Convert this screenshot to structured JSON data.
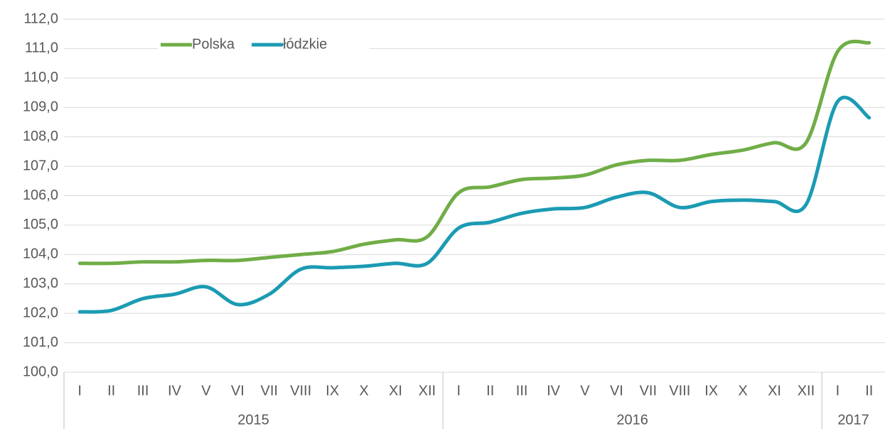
{
  "chart_data": {
    "type": "line",
    "categories": [
      "I",
      "II",
      "III",
      "IV",
      "V",
      "VI",
      "VII",
      "VIII",
      "IX",
      "X",
      "XI",
      "XII",
      "I",
      "II",
      "III",
      "IV",
      "V",
      "VI",
      "VII",
      "VIII",
      "IX",
      "X",
      "XI",
      "XII",
      "I",
      "II"
    ],
    "years": [
      "2015",
      "2015",
      "2015",
      "2015",
      "2015",
      "2015",
      "2015",
      "2015",
      "2015",
      "2015",
      "2015",
      "2015",
      "2016",
      "2016",
      "2016",
      "2016",
      "2016",
      "2016",
      "2016",
      "2016",
      "2016",
      "2016",
      "2016",
      "2016",
      "2017",
      "2017"
    ],
    "series": [
      {
        "name": "Polska",
        "color": "#70ad47",
        "values": [
          103.7,
          103.7,
          103.75,
          103.75,
          103.8,
          103.8,
          103.9,
          104.0,
          104.1,
          104.35,
          104.5,
          104.6,
          106.1,
          106.3,
          106.55,
          106.6,
          106.7,
          107.05,
          107.2,
          107.2,
          107.4,
          107.55,
          107.8,
          107.8,
          110.9,
          111.2
        ]
      },
      {
        "name": "łódzkie",
        "color": "#1b9bb3",
        "values": [
          102.05,
          102.1,
          102.5,
          102.65,
          102.9,
          102.3,
          102.65,
          103.5,
          103.55,
          103.6,
          103.7,
          103.7,
          104.9,
          105.1,
          105.4,
          105.55,
          105.6,
          105.95,
          106.1,
          105.6,
          105.8,
          105.85,
          105.8,
          105.7,
          109.2,
          108.65
        ]
      }
    ],
    "ylim": [
      100,
      112
    ],
    "yticks": [
      {
        "value": 100,
        "label": "100,0"
      },
      {
        "value": 101,
        "label": "101,0"
      },
      {
        "value": 102,
        "label": "102,0"
      },
      {
        "value": 103,
        "label": "103,0"
      },
      {
        "value": 104,
        "label": "104,0"
      },
      {
        "value": 105,
        "label": "105,0"
      },
      {
        "value": 106,
        "label": "106,0"
      },
      {
        "value": 107,
        "label": "107,0"
      },
      {
        "value": 108,
        "label": "108,0"
      },
      {
        "value": 109,
        "label": "109,0"
      },
      {
        "value": 110,
        "label": "110,0"
      },
      {
        "value": 111,
        "label": "111,0"
      },
      {
        "value": 112,
        "label": "112,0"
      }
    ],
    "grid": true,
    "legend": "top-left"
  }
}
